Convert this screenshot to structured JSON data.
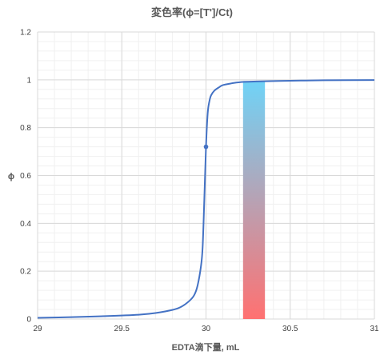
{
  "chart_data": {
    "type": "line",
    "title": "変色率(ϕ=[T']/Ct)",
    "xlabel": "EDTA滴下量, mL",
    "ylabel": "ϕ",
    "xlim": [
      29,
      31
    ],
    "ylim": [
      0,
      1.2
    ],
    "x_ticks": [
      29,
      29.5,
      30,
      30.5,
      31
    ],
    "x_tick_labels": [
      "29",
      "29.5",
      "30",
      "30.5",
      "31"
    ],
    "y_ticks": [
      0,
      0.2,
      0.4,
      0.6,
      0.8,
      1,
      1.2
    ],
    "y_tick_labels": [
      "0",
      "0.2",
      "0.4",
      "0.6",
      "0.8",
      "1",
      "1.2"
    ],
    "grid": true,
    "legend": "none",
    "series": [
      {
        "color": "#4472c4",
        "x": [
          29.0,
          29.2,
          29.4,
          29.6,
          29.7,
          29.8,
          29.85,
          29.9,
          29.93,
          29.95,
          29.97,
          29.98,
          29.99,
          30.0,
          30.01,
          30.02,
          30.03,
          30.05,
          30.08,
          30.1,
          30.15,
          30.2,
          30.3,
          30.5,
          30.7,
          31.0
        ],
        "y": [
          0.005,
          0.008,
          0.012,
          0.018,
          0.025,
          0.038,
          0.05,
          0.075,
          0.1,
          0.14,
          0.22,
          0.3,
          0.5,
          0.72,
          0.86,
          0.91,
          0.935,
          0.955,
          0.97,
          0.978,
          0.985,
          0.99,
          0.993,
          0.996,
          0.998,
          0.999
        ]
      }
    ],
    "marker_point": {
      "x": 30.0,
      "y": 0.72,
      "color": "#4472c4"
    },
    "band": {
      "x_start": 30.22,
      "x_end": 30.35,
      "y_bottom": 0,
      "y_top": 0.995,
      "color_top": "#6fd3f7",
      "color_bottom": "#ff7171"
    }
  }
}
